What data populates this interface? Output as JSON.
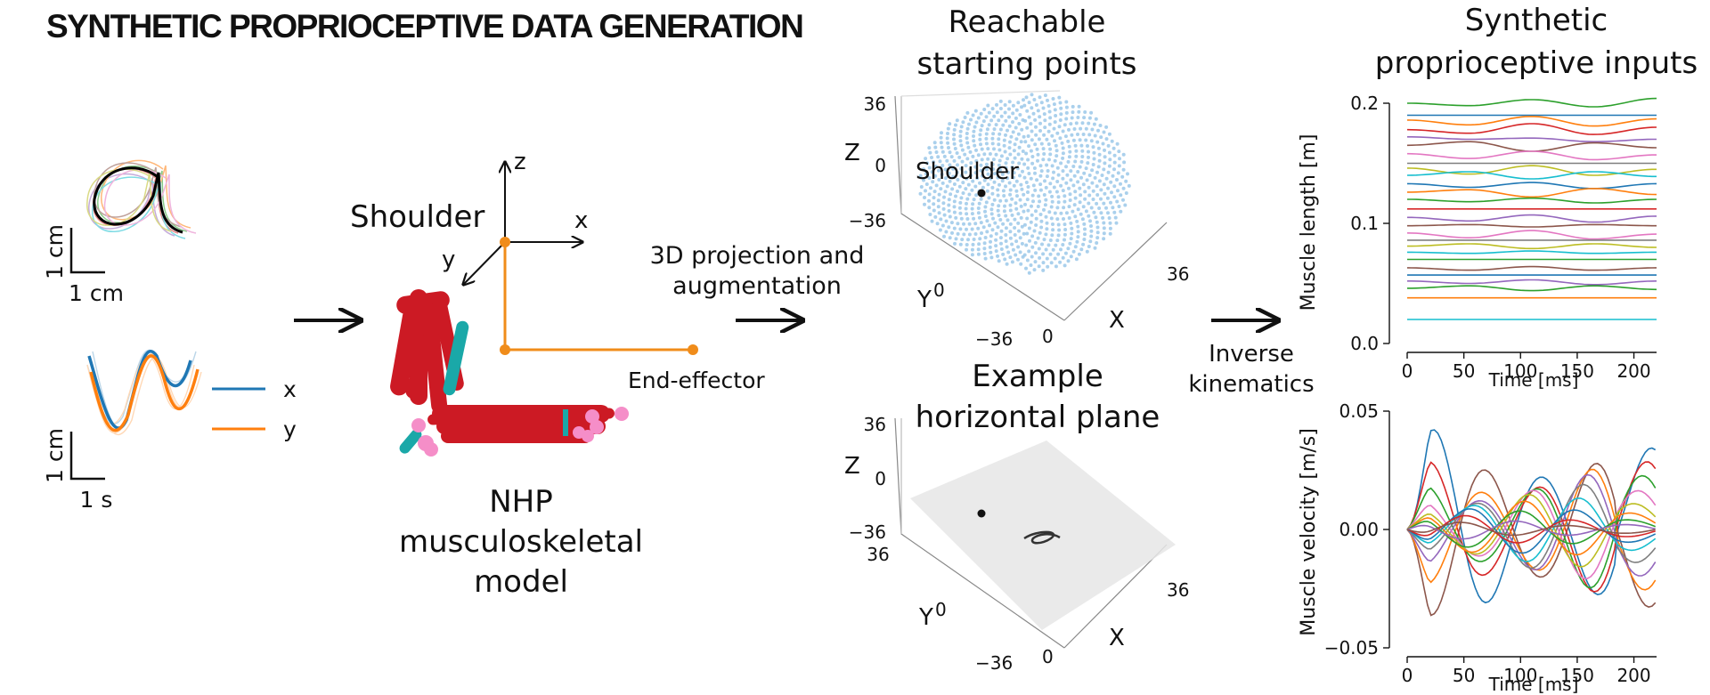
{
  "header": {
    "title": "SYNTHETIC PROPRIOCEPTIVE DATA GENERATION"
  },
  "trajectory": {
    "scale_y": "1 cm",
    "scale_x": "1 cm",
    "letter": "a",
    "time_scale_y": "1 cm",
    "time_scale_x": "1 s",
    "legend": [
      {
        "label": "x",
        "color": "#1f77b4"
      },
      {
        "label": "y",
        "color": "#ff7f0e"
      }
    ]
  },
  "model": {
    "axis_z": "z",
    "axis_x": "x",
    "axis_y": "y",
    "shoulder_label": "Shoulder",
    "end_effector_label": "End-effector",
    "caption_lines": [
      "NHP",
      "musculoskeletal",
      "model"
    ],
    "arm_color": "#cc1a24",
    "axis_color": "#f08c1a"
  },
  "projection": {
    "label_lines": [
      "3D projection and",
      "augmentation"
    ]
  },
  "reachable": {
    "title_lines": [
      "Reachable",
      "starting points"
    ],
    "shoulder_label": "Shoulder",
    "z_label": "Z",
    "z_ticks": [
      "36",
      "0",
      "−36"
    ],
    "y_label": "Y",
    "y_ticks": [
      "0",
      "−36"
    ],
    "x_label": "X",
    "x_ticks": [
      "0",
      "36"
    ],
    "cloud_color": "#8ec0e6"
  },
  "plane": {
    "title_lines": [
      "Example",
      "horizontal plane"
    ],
    "z_label": "Z",
    "z_ticks": [
      "36",
      "0",
      "−36"
    ],
    "y_label": "Y",
    "y_ticks": [
      "36",
      "0",
      "−36"
    ],
    "x_label": "X",
    "x_ticks": [
      "0",
      "36"
    ]
  },
  "inverse_kinematics": {
    "label_lines": [
      "Inverse",
      "kinematics"
    ]
  },
  "outputs": {
    "title_lines": [
      "Synthetic",
      "proprioceptive inputs"
    ]
  },
  "chart_data": [
    {
      "type": "line",
      "title": "",
      "xlabel": "Time [ms]",
      "ylabel": "Muscle length [m]",
      "xlim": [
        0,
        220
      ],
      "ylim": [
        0.0,
        0.2
      ],
      "xticks": [
        "0",
        "50",
        "100",
        "150",
        "200"
      ],
      "yticks": [
        "0.2",
        "0.1",
        "0.0"
      ],
      "series": [
        {
          "values": [
            0.2,
            0.198,
            0.203,
            0.197,
            0.204
          ],
          "color": "#2ca02c"
        },
        {
          "values": [
            0.19,
            0.19,
            0.19,
            0.19,
            0.19
          ],
          "color": "#1f77b4"
        },
        {
          "values": [
            0.186,
            0.182,
            0.189,
            0.181,
            0.187
          ],
          "color": "#ff7f0e"
        },
        {
          "values": [
            0.178,
            0.175,
            0.183,
            0.174,
            0.18
          ],
          "color": "#d62728"
        },
        {
          "values": [
            0.172,
            0.17,
            0.171,
            0.168,
            0.17
          ],
          "color": "#9467bd"
        },
        {
          "values": [
            0.165,
            0.168,
            0.16,
            0.167,
            0.163
          ],
          "color": "#8c564b"
        },
        {
          "values": [
            0.158,
            0.154,
            0.16,
            0.153,
            0.157
          ],
          "color": "#e377c2"
        },
        {
          "values": [
            0.15,
            0.15,
            0.15,
            0.15,
            0.15
          ],
          "color": "#7f7f7f"
        },
        {
          "values": [
            0.146,
            0.141,
            0.148,
            0.14,
            0.145
          ],
          "color": "#bcbd22"
        },
        {
          "values": [
            0.14,
            0.143,
            0.137,
            0.143,
            0.139
          ],
          "color": "#17becf"
        },
        {
          "values": [
            0.133,
            0.13,
            0.134,
            0.129,
            0.133
          ],
          "color": "#1f77b4"
        },
        {
          "values": [
            0.126,
            0.128,
            0.122,
            0.129,
            0.124
          ],
          "color": "#ff7f0e"
        },
        {
          "values": [
            0.12,
            0.118,
            0.121,
            0.117,
            0.12
          ],
          "color": "#2ca02c"
        },
        {
          "values": [
            0.112,
            0.112,
            0.112,
            0.112,
            0.112
          ],
          "color": "#d62728"
        },
        {
          "values": [
            0.105,
            0.102,
            0.107,
            0.101,
            0.106
          ],
          "color": "#9467bd"
        },
        {
          "values": [
            0.098,
            0.099,
            0.097,
            0.099,
            0.098
          ],
          "color": "#8c564b"
        },
        {
          "values": [
            0.092,
            0.088,
            0.094,
            0.087,
            0.091
          ],
          "color": "#e377c2"
        },
        {
          "values": [
            0.086,
            0.086,
            0.086,
            0.086,
            0.086
          ],
          "color": "#7f7f7f"
        },
        {
          "values": [
            0.081,
            0.083,
            0.079,
            0.083,
            0.08
          ],
          "color": "#bcbd22"
        },
        {
          "values": [
            0.076,
            0.075,
            0.077,
            0.075,
            0.076
          ],
          "color": "#17becf"
        },
        {
          "values": [
            0.07,
            0.07,
            0.07,
            0.07,
            0.07
          ],
          "color": "#2ca02c"
        },
        {
          "values": [
            0.063,
            0.061,
            0.064,
            0.061,
            0.063
          ],
          "color": "#8c564b"
        },
        {
          "values": [
            0.057,
            0.057,
            0.057,
            0.057,
            0.057
          ],
          "color": "#1f77b4"
        },
        {
          "values": [
            0.052,
            0.05,
            0.053,
            0.049,
            0.052
          ],
          "color": "#9467bd"
        },
        {
          "values": [
            0.046,
            0.048,
            0.044,
            0.048,
            0.045
          ],
          "color": "#2ca02c"
        },
        {
          "values": [
            0.038,
            0.038,
            0.038,
            0.038,
            0.038
          ],
          "color": "#ff7f0e"
        },
        {
          "values": [
            0.02,
            0.02,
            0.02,
            0.02,
            0.02
          ],
          "color": "#17becf"
        }
      ]
    },
    {
      "type": "line",
      "title": "",
      "xlabel": "Time [ms]",
      "ylabel": "Muscle velocity [m/s]",
      "xlim": [
        0,
        220
      ],
      "ylim": [
        -0.05,
        0.05
      ],
      "xticks": [
        "0",
        "50",
        "100",
        "150",
        "200"
      ],
      "yticks": [
        "0.05",
        "0.00",
        "−0.05"
      ],
      "series": [
        {
          "amp": 0.044,
          "color": "#1f77b4"
        },
        {
          "amp": -0.04,
          "color": "#8c564b"
        },
        {
          "amp": 0.034,
          "color": "#d62728"
        },
        {
          "amp": -0.03,
          "color": "#ff7f0e"
        },
        {
          "amp": 0.027,
          "color": "#2ca02c"
        },
        {
          "amp": -0.024,
          "color": "#9467bd"
        },
        {
          "amp": 0.021,
          "color": "#e377c2"
        },
        {
          "amp": -0.019,
          "color": "#7f7f7f"
        },
        {
          "amp": 0.016,
          "color": "#bcbd22"
        },
        {
          "amp": -0.014,
          "color": "#17becf"
        },
        {
          "amp": 0.012,
          "color": "#ff7f0e"
        },
        {
          "amp": -0.01,
          "color": "#1f77b4"
        },
        {
          "amp": 0.008,
          "color": "#2ca02c"
        },
        {
          "amp": -0.006,
          "color": "#d62728"
        },
        {
          "amp": 0.004,
          "color": "#9467bd"
        },
        {
          "amp": -0.003,
          "color": "#8c564b"
        }
      ]
    }
  ]
}
